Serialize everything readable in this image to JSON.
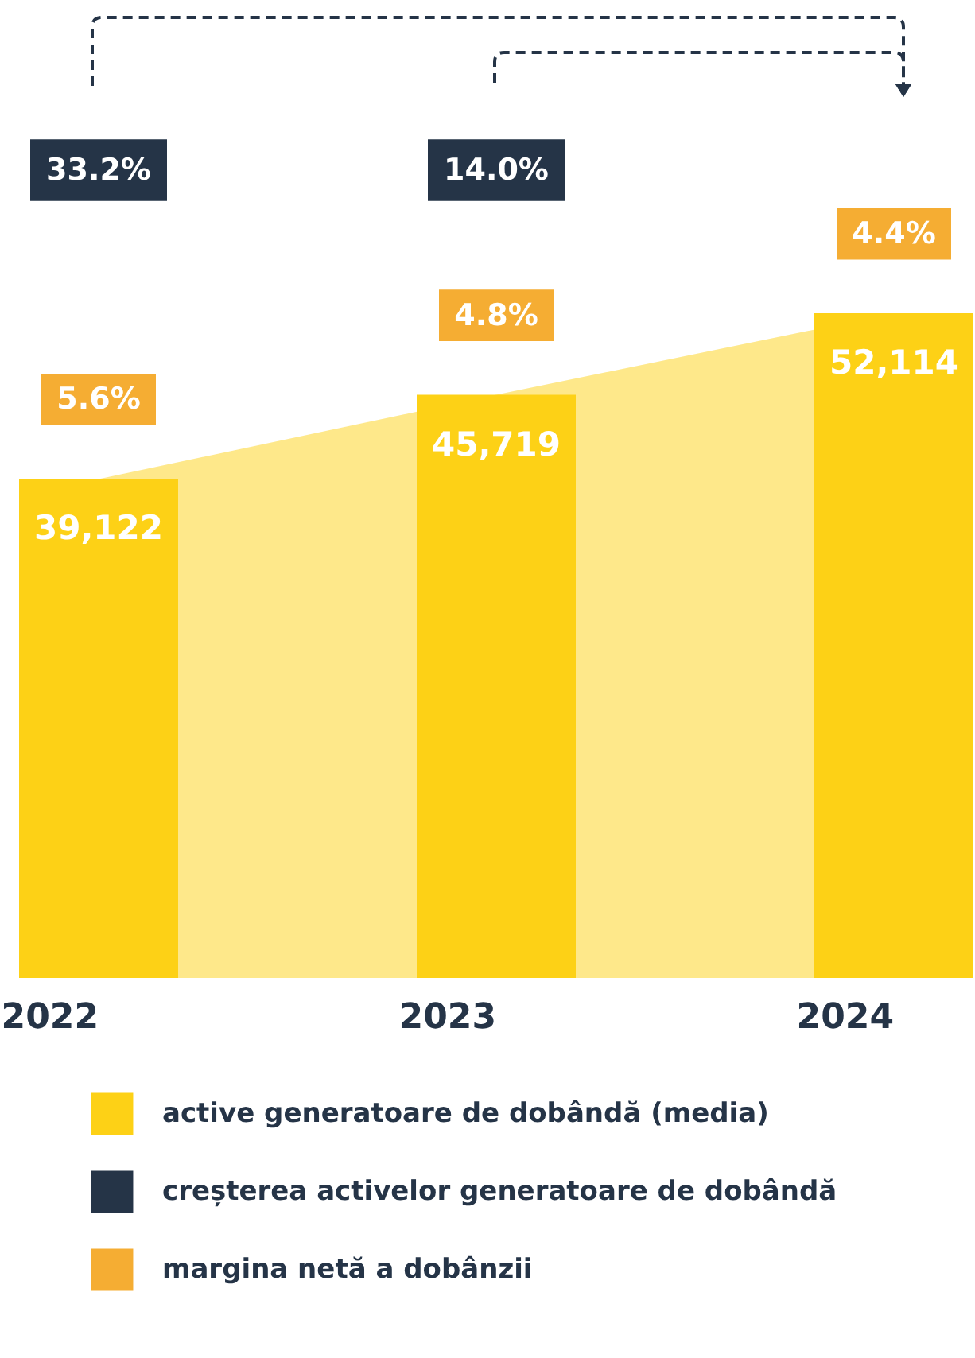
{
  "chart_data": {
    "type": "bar",
    "categories": [
      "2022",
      "2023",
      "2024"
    ],
    "legend": "bottom left",
    "series": [
      {
        "name": "active generatoare de dobândă (media)",
        "color": "#fdd116",
        "values": [
          39122,
          45719,
          52114
        ],
        "value_labels": [
          "39,122",
          "45,719",
          "52,114"
        ]
      },
      {
        "name": "creșterea activelor generatoare de dobândă",
        "color": "#253447",
        "values": [
          null,
          null,
          null
        ]
      },
      {
        "name": "margina netă a dobânzii",
        "color": "#f5ad33",
        "values": [
          null,
          null,
          null
        ]
      }
    ],
    "annotations": [
      "33.2%",
      "14.0%",
      "5.6%",
      "4.8%",
      "4.4%"
    ]
  }
}
